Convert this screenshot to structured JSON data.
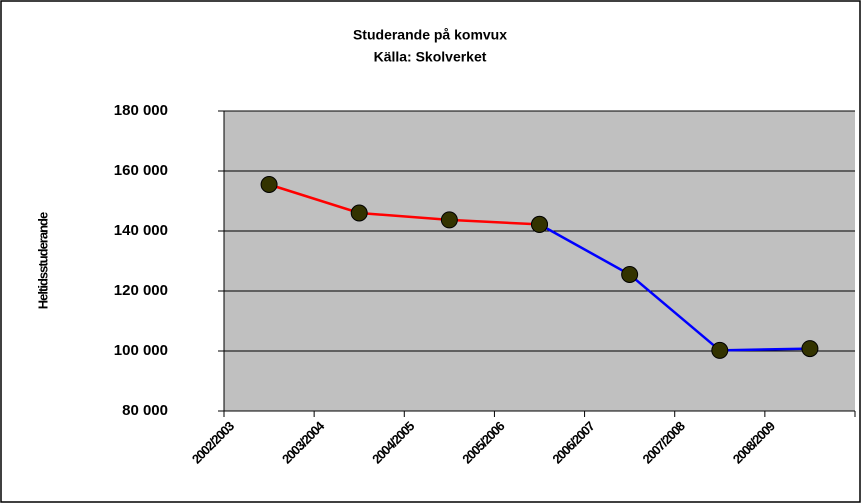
{
  "chart_data": {
    "type": "line",
    "title": "Studerande på komvux",
    "subtitle": "Källa: Skolverket",
    "y_label": "Heltidsstuderande",
    "categories": [
      "2002/2003",
      "2003/2004",
      "2004/2005",
      "2005/2006",
      "2006/2007",
      "2007/2008",
      "2008/2009"
    ],
    "series": [
      {
        "color": "#ff0000",
        "values": [
          155500,
          146000,
          143700,
          142200,
          null,
          null,
          null
        ]
      },
      {
        "color": "#0000ff",
        "values": [
          null,
          null,
          null,
          142200,
          125500,
          100200,
          100800
        ]
      }
    ],
    "marker_color": "#333300",
    "ylim": [
      80000,
      180000
    ],
    "yticks": [
      {
        "value": 80000,
        "label": "80 000"
      },
      {
        "value": 100000,
        "label": "100 000"
      },
      {
        "value": 120000,
        "label": "120 000"
      },
      {
        "value": 140000,
        "label": "140 000"
      },
      {
        "value": 160000,
        "label": "160 000"
      },
      {
        "value": 180000,
        "label": "180 000"
      }
    ],
    "grid": true,
    "plot_background": "#c0c0c0"
  }
}
